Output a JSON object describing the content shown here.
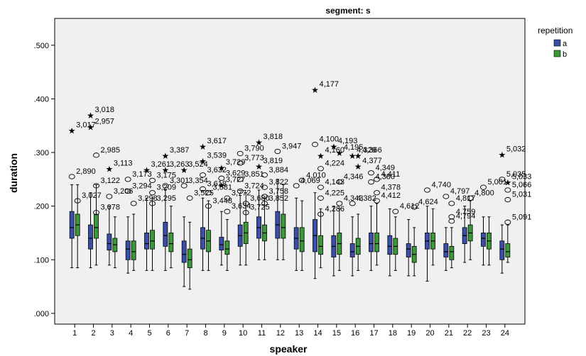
{
  "chart_data": {
    "type": "boxplot",
    "title": "segment: s",
    "xlabel": "speaker",
    "ylabel": "duration",
    "ylim": [
      -0.02,
      0.55
    ],
    "y_ticks": [
      ".000",
      ".100",
      ".200",
      ".300",
      ".400",
      ".500"
    ],
    "categories": [
      "1",
      "2",
      "3",
      "4",
      "5",
      "6",
      "7",
      "8",
      "9",
      "10",
      "11",
      "12",
      "13",
      "14",
      "15",
      "16",
      "17",
      "18",
      "19",
      "20",
      "21",
      "22",
      "23",
      "24"
    ],
    "legend": {
      "title": "repetition",
      "placement": "right"
    },
    "series": [
      {
        "name": "a",
        "color": "#3b4ea8",
        "boxes": [
          {
            "min": 0.085,
            "q1": 0.14,
            "median": 0.16,
            "q3": 0.19,
            "max": 0.24
          },
          {
            "min": 0.085,
            "q1": 0.12,
            "median": 0.14,
            "q3": 0.165,
            "max": 0.225
          },
          {
            "min": 0.09,
            "q1": 0.118,
            "median": 0.13,
            "q3": 0.148,
            "max": 0.2
          },
          {
            "min": 0.075,
            "q1": 0.1,
            "median": 0.12,
            "q3": 0.135,
            "max": 0.18
          },
          {
            "min": 0.08,
            "q1": 0.12,
            "median": 0.13,
            "q3": 0.15,
            "max": 0.215
          },
          {
            "min": 0.08,
            "q1": 0.125,
            "median": 0.145,
            "q3": 0.17,
            "max": 0.23
          },
          {
            "min": 0.05,
            "q1": 0.095,
            "median": 0.11,
            "q3": 0.135,
            "max": 0.18
          },
          {
            "min": 0.08,
            "q1": 0.12,
            "median": 0.14,
            "q3": 0.16,
            "max": 0.215
          },
          {
            "min": 0.09,
            "q1": 0.118,
            "median": 0.128,
            "q3": 0.142,
            "max": 0.19
          },
          {
            "min": 0.09,
            "q1": 0.125,
            "median": 0.145,
            "q3": 0.165,
            "max": 0.22
          },
          {
            "min": 0.1,
            "q1": 0.14,
            "median": 0.16,
            "q3": 0.18,
            "max": 0.23
          },
          {
            "min": 0.1,
            "q1": 0.14,
            "median": 0.165,
            "q3": 0.19,
            "max": 0.25
          },
          {
            "min": 0.08,
            "q1": 0.12,
            "median": 0.14,
            "q3": 0.16,
            "max": 0.215
          },
          {
            "min": 0.065,
            "q1": 0.115,
            "median": 0.145,
            "q3": 0.175,
            "max": 0.225
          },
          {
            "min": 0.07,
            "q1": 0.105,
            "median": 0.125,
            "q3": 0.145,
            "max": 0.2
          },
          {
            "min": 0.07,
            "q1": 0.105,
            "median": 0.115,
            "q3": 0.13,
            "max": 0.18
          },
          {
            "min": 0.08,
            "q1": 0.115,
            "median": 0.13,
            "q3": 0.15,
            "max": 0.2
          },
          {
            "min": 0.07,
            "q1": 0.11,
            "median": 0.125,
            "q3": 0.145,
            "max": 0.195
          },
          {
            "min": 0.07,
            "q1": 0.105,
            "median": 0.12,
            "q3": 0.13,
            "max": 0.175
          },
          {
            "min": 0.06,
            "q1": 0.12,
            "median": 0.135,
            "q3": 0.15,
            "max": 0.2
          },
          {
            "min": 0.08,
            "q1": 0.105,
            "median": 0.115,
            "q3": 0.13,
            "max": 0.16
          },
          {
            "min": 0.095,
            "q1": 0.13,
            "median": 0.145,
            "q3": 0.16,
            "max": 0.2
          },
          {
            "min": 0.09,
            "q1": 0.125,
            "median": 0.14,
            "q3": 0.15,
            "max": 0.18
          },
          {
            "min": 0.075,
            "q1": 0.1,
            "median": 0.12,
            "q3": 0.135,
            "max": 0.165
          }
        ]
      },
      {
        "name": "b",
        "color": "#3a9a3a",
        "boxes": [
          {
            "min": 0.085,
            "q1": 0.145,
            "median": 0.165,
            "q3": 0.185,
            "max": 0.24
          },
          {
            "min": 0.09,
            "q1": 0.14,
            "median": 0.16,
            "q3": 0.185,
            "max": 0.24
          },
          {
            "min": 0.085,
            "q1": 0.115,
            "median": 0.128,
            "q3": 0.14,
            "max": 0.18
          },
          {
            "min": 0.08,
            "q1": 0.1,
            "median": 0.115,
            "q3": 0.135,
            "max": 0.185
          },
          {
            "min": 0.08,
            "q1": 0.12,
            "median": 0.135,
            "q3": 0.155,
            "max": 0.215
          },
          {
            "min": 0.085,
            "q1": 0.115,
            "median": 0.13,
            "q3": 0.15,
            "max": 0.2
          },
          {
            "min": 0.045,
            "q1": 0.085,
            "median": 0.1,
            "q3": 0.12,
            "max": 0.17
          },
          {
            "min": 0.08,
            "q1": 0.115,
            "median": 0.135,
            "q3": 0.155,
            "max": 0.21
          },
          {
            "min": 0.08,
            "q1": 0.11,
            "median": 0.12,
            "q3": 0.135,
            "max": 0.175
          },
          {
            "min": 0.09,
            "q1": 0.13,
            "median": 0.15,
            "q3": 0.17,
            "max": 0.225
          },
          {
            "min": 0.1,
            "q1": 0.135,
            "median": 0.15,
            "q3": 0.165,
            "max": 0.215
          },
          {
            "min": 0.1,
            "q1": 0.14,
            "median": 0.16,
            "q3": 0.185,
            "max": 0.24
          },
          {
            "min": 0.08,
            "q1": 0.115,
            "median": 0.135,
            "q3": 0.16,
            "max": 0.21
          },
          {
            "min": 0.085,
            "q1": 0.11,
            "median": 0.125,
            "q3": 0.145,
            "max": 0.195
          },
          {
            "min": 0.08,
            "q1": 0.11,
            "median": 0.13,
            "q3": 0.15,
            "max": 0.195
          },
          {
            "min": 0.08,
            "q1": 0.11,
            "median": 0.125,
            "q3": 0.14,
            "max": 0.185
          },
          {
            "min": 0.09,
            "q1": 0.115,
            "median": 0.13,
            "q3": 0.15,
            "max": 0.205
          },
          {
            "min": 0.08,
            "q1": 0.11,
            "median": 0.125,
            "q3": 0.14,
            "max": 0.18
          },
          {
            "min": 0.07,
            "q1": 0.095,
            "median": 0.11,
            "q3": 0.125,
            "max": 0.16
          },
          {
            "min": 0.09,
            "q1": 0.12,
            "median": 0.135,
            "q3": 0.15,
            "max": 0.195
          },
          {
            "min": 0.085,
            "q1": 0.1,
            "median": 0.115,
            "q3": 0.125,
            "max": 0.16
          },
          {
            "min": 0.1,
            "q1": 0.135,
            "median": 0.15,
            "q3": 0.165,
            "max": 0.21
          },
          {
            "min": 0.09,
            "q1": 0.12,
            "median": 0.135,
            "q3": 0.15,
            "max": 0.18
          },
          {
            "min": 0.095,
            "q1": 0.105,
            "median": 0.115,
            "q3": 0.13,
            "max": 0.165
          }
        ]
      }
    ],
    "outliers": [
      {
        "speaker": 1,
        "series": "a",
        "value": 0.342,
        "label": "3,017",
        "marker": "star"
      },
      {
        "speaker": 1,
        "series": "a",
        "value": 0.255,
        "label": "2,890",
        "marker": "circle"
      },
      {
        "speaker": 2,
        "series": "a",
        "value": 0.37,
        "label": "3,018",
        "marker": "star"
      },
      {
        "speaker": 2,
        "series": "a",
        "value": 0.348,
        "label": "2,957",
        "marker": "star"
      },
      {
        "speaker": 2,
        "series": "b",
        "value": 0.295,
        "label": "2,985",
        "marker": "circle"
      },
      {
        "speaker": 2,
        "series": "b",
        "value": 0.238,
        "label": "3,122",
        "marker": "circle"
      },
      {
        "speaker": 1,
        "series": "b",
        "value": 0.21,
        "label": "3,027",
        "marker": "circle"
      },
      {
        "speaker": 2,
        "series": "b",
        "value": 0.188,
        "label": "3,078",
        "marker": "circle"
      },
      {
        "speaker": 3,
        "series": "a",
        "value": 0.27,
        "label": "3,113",
        "marker": "star"
      },
      {
        "speaker": 3,
        "series": "a",
        "value": 0.218,
        "label": "3,206",
        "marker": "circle"
      },
      {
        "speaker": 4,
        "series": "a",
        "value": 0.25,
        "label": "3,173",
        "marker": "circle"
      },
      {
        "speaker": 4,
        "series": "a",
        "value": 0.228,
        "label": "3,294",
        "marker": "circle"
      },
      {
        "speaker": 4,
        "series": "b",
        "value": 0.205,
        "label": "3,298",
        "marker": "circle"
      },
      {
        "speaker": 5,
        "series": "a",
        "value": 0.268,
        "label": "3,261",
        "marker": "star"
      },
      {
        "speaker": 5,
        "series": "b",
        "value": 0.248,
        "label": "3,175",
        "marker": "circle"
      },
      {
        "speaker": 5,
        "series": "b",
        "value": 0.225,
        "label": "3,209",
        "marker": "circle"
      },
      {
        "speaker": 5,
        "series": "b",
        "value": 0.205,
        "label": "3,295",
        "marker": "circle"
      },
      {
        "speaker": 6,
        "series": "a",
        "value": 0.295,
        "label": "3,387",
        "marker": "star"
      },
      {
        "speaker": 6,
        "series": "a",
        "value": 0.268,
        "label": "3,263",
        "marker": "star"
      },
      {
        "speaker": 6,
        "series": "a",
        "value": 0.238,
        "label": "3,301",
        "marker": "circle"
      },
      {
        "speaker": 7,
        "series": "a",
        "value": 0.268,
        "label": "3,524",
        "marker": "star"
      },
      {
        "speaker": 7,
        "series": "a",
        "value": 0.238,
        "label": "3,354",
        "marker": "circle"
      },
      {
        "speaker": 7,
        "series": "b",
        "value": 0.215,
        "label": "3,525",
        "marker": "circle"
      },
      {
        "speaker": 8,
        "series": "a",
        "value": 0.312,
        "label": "3,617",
        "marker": "star"
      },
      {
        "speaker": 8,
        "series": "a",
        "value": 0.285,
        "label": "3,539",
        "marker": "star"
      },
      {
        "speaker": 8,
        "series": "a",
        "value": 0.258,
        "label": "3,632",
        "marker": "circle"
      },
      {
        "speaker": 8,
        "series": "a",
        "value": 0.232,
        "label": "3,618",
        "marker": "circle"
      },
      {
        "speaker": 8,
        "series": "b",
        "value": 0.225,
        "label": "3,581",
        "marker": "circle"
      },
      {
        "speaker": 8,
        "series": "b",
        "value": 0.2,
        "label": "3,448",
        "marker": "circle"
      },
      {
        "speaker": 9,
        "series": "a",
        "value": 0.272,
        "label": "3,729",
        "marker": "star"
      },
      {
        "speaker": 9,
        "series": "a",
        "value": 0.252,
        "label": "3,629",
        "marker": "circle"
      },
      {
        "speaker": 9,
        "series": "a",
        "value": 0.24,
        "label": "3,727",
        "marker": "star"
      },
      {
        "speaker": 9,
        "series": "b",
        "value": 0.215,
        "label": "3,772",
        "marker": "circle"
      },
      {
        "speaker": 9,
        "series": "b",
        "value": 0.19,
        "label": "3,634",
        "marker": "circle"
      },
      {
        "speaker": 10,
        "series": "a",
        "value": 0.298,
        "label": "3,790",
        "marker": "circle"
      },
      {
        "speaker": 10,
        "series": "a",
        "value": 0.28,
        "label": "3,773",
        "marker": "circle"
      },
      {
        "speaker": 10,
        "series": "a",
        "value": 0.25,
        "label": "3,851",
        "marker": "circle"
      },
      {
        "speaker": 10,
        "series": "a",
        "value": 0.228,
        "label": "3,724",
        "marker": "circle"
      },
      {
        "speaker": 10,
        "series": "b",
        "value": 0.205,
        "label": "3,680",
        "marker": "circle"
      },
      {
        "speaker": 10,
        "series": "b",
        "value": 0.188,
        "label": "3,725",
        "marker": "circle"
      },
      {
        "speaker": 11,
        "series": "a",
        "value": 0.32,
        "label": "3,818",
        "marker": "star"
      },
      {
        "speaker": 11,
        "series": "a",
        "value": 0.275,
        "label": "3,819",
        "marker": "star"
      },
      {
        "speaker": 11,
        "series": "b",
        "value": 0.258,
        "label": "3,884",
        "marker": "circle"
      },
      {
        "speaker": 11,
        "series": "b",
        "value": 0.235,
        "label": "3,822",
        "marker": "circle"
      },
      {
        "speaker": 11,
        "series": "b",
        "value": 0.218,
        "label": "3,758",
        "marker": "circle"
      },
      {
        "speaker": 11,
        "series": "b",
        "value": 0.205,
        "label": "3,852",
        "marker": "circle"
      },
      {
        "speaker": 12,
        "series": "a",
        "value": 0.302,
        "label": "3,947",
        "marker": "circle"
      },
      {
        "speaker": 13,
        "series": "a",
        "value": 0.238,
        "label": "4,069",
        "marker": "circle"
      },
      {
        "speaker": 13,
        "series": "b",
        "value": 0.248,
        "label": "4,010",
        "marker": "circle"
      },
      {
        "speaker": 14,
        "series": "a",
        "value": 0.418,
        "label": "4,177",
        "marker": "star"
      },
      {
        "speaker": 14,
        "series": "a",
        "value": 0.315,
        "label": "4,100",
        "marker": "circle"
      },
      {
        "speaker": 14,
        "series": "b",
        "value": 0.295,
        "label": "4,160",
        "marker": "star"
      },
      {
        "speaker": 14,
        "series": "b",
        "value": 0.27,
        "label": "4,224",
        "marker": "circle"
      },
      {
        "speaker": 14,
        "series": "b",
        "value": 0.235,
        "label": "4,143",
        "marker": "circle"
      },
      {
        "speaker": 14,
        "series": "b",
        "value": 0.215,
        "label": "4,225",
        "marker": "circle"
      },
      {
        "speaker": 14,
        "series": "b",
        "value": 0.185,
        "label": "4,286",
        "marker": "circle"
      },
      {
        "speaker": 15,
        "series": "a",
        "value": 0.312,
        "label": "4,193",
        "marker": "star"
      },
      {
        "speaker": 15,
        "series": "b",
        "value": 0.3,
        "label": "4,195",
        "marker": "star"
      },
      {
        "speaker": 15,
        "series": "b",
        "value": 0.245,
        "label": "4,346",
        "marker": "circle"
      },
      {
        "speaker": 15,
        "series": "b",
        "value": 0.205,
        "label": "4,343",
        "marker": "circle"
      },
      {
        "speaker": 16,
        "series": "a",
        "value": 0.295,
        "label": "4,329",
        "marker": "star"
      },
      {
        "speaker": 16,
        "series": "b",
        "value": 0.295,
        "label": "4,366",
        "marker": "star"
      },
      {
        "speaker": 16,
        "series": "b",
        "value": 0.275,
        "label": "4,377",
        "marker": "star"
      },
      {
        "speaker": 16,
        "series": "a",
        "value": 0.205,
        "label": "4,382",
        "marker": "circle"
      },
      {
        "speaker": 17,
        "series": "a",
        "value": 0.262,
        "label": "4,349",
        "marker": "circle"
      },
      {
        "speaker": 17,
        "series": "a",
        "value": 0.245,
        "label": "4,380",
        "marker": "circle"
      },
      {
        "speaker": 17,
        "series": "b",
        "value": 0.25,
        "label": "4,411",
        "marker": "circle"
      },
      {
        "speaker": 17,
        "series": "b",
        "value": 0.225,
        "label": "4,378",
        "marker": "circle"
      },
      {
        "speaker": 17,
        "series": "b",
        "value": 0.21,
        "label": "4,412",
        "marker": "circle"
      },
      {
        "speaker": 18,
        "series": "b",
        "value": 0.19,
        "label": "4,612",
        "marker": "circle"
      },
      {
        "speaker": 19,
        "series": "b",
        "value": 0.198,
        "label": "4,624",
        "marker": "circle"
      },
      {
        "speaker": 20,
        "series": "a",
        "value": 0.23,
        "label": "4,740",
        "marker": "circle"
      },
      {
        "speaker": 21,
        "series": "a",
        "value": 0.218,
        "label": "4,797",
        "marker": "circle"
      },
      {
        "speaker": 21,
        "series": "b",
        "value": 0.205,
        "label": "4,817",
        "marker": "circle"
      },
      {
        "speaker": 21,
        "series": "b",
        "value": 0.18,
        "label": "4,759",
        "marker": "circle"
      },
      {
        "speaker": 21,
        "series": "b",
        "value": 0.172,
        "label": "4,794",
        "marker": "circle"
      },
      {
        "speaker": 22,
        "series": "b",
        "value": 0.215,
        "label": "4,800",
        "marker": "circle"
      },
      {
        "speaker": 23,
        "series": "a",
        "value": 0.235,
        "label": "5,001",
        "marker": "circle"
      },
      {
        "speaker": 24,
        "series": "a",
        "value": 0.297,
        "label": "5,032",
        "marker": "star"
      },
      {
        "speaker": 24,
        "series": "a",
        "value": 0.25,
        "label": "5,035",
        "marker": "circle"
      },
      {
        "speaker": 24,
        "series": "b",
        "value": 0.245,
        "label": "5,033",
        "marker": "star"
      },
      {
        "speaker": 24,
        "series": "b",
        "value": 0.23,
        "label": "5,066",
        "marker": "circle"
      },
      {
        "speaker": 24,
        "series": "b",
        "value": 0.212,
        "label": "5,031",
        "marker": "circle"
      },
      {
        "speaker": 24,
        "series": "b",
        "value": 0.17,
        "label": "5,091",
        "marker": "circle"
      }
    ]
  }
}
